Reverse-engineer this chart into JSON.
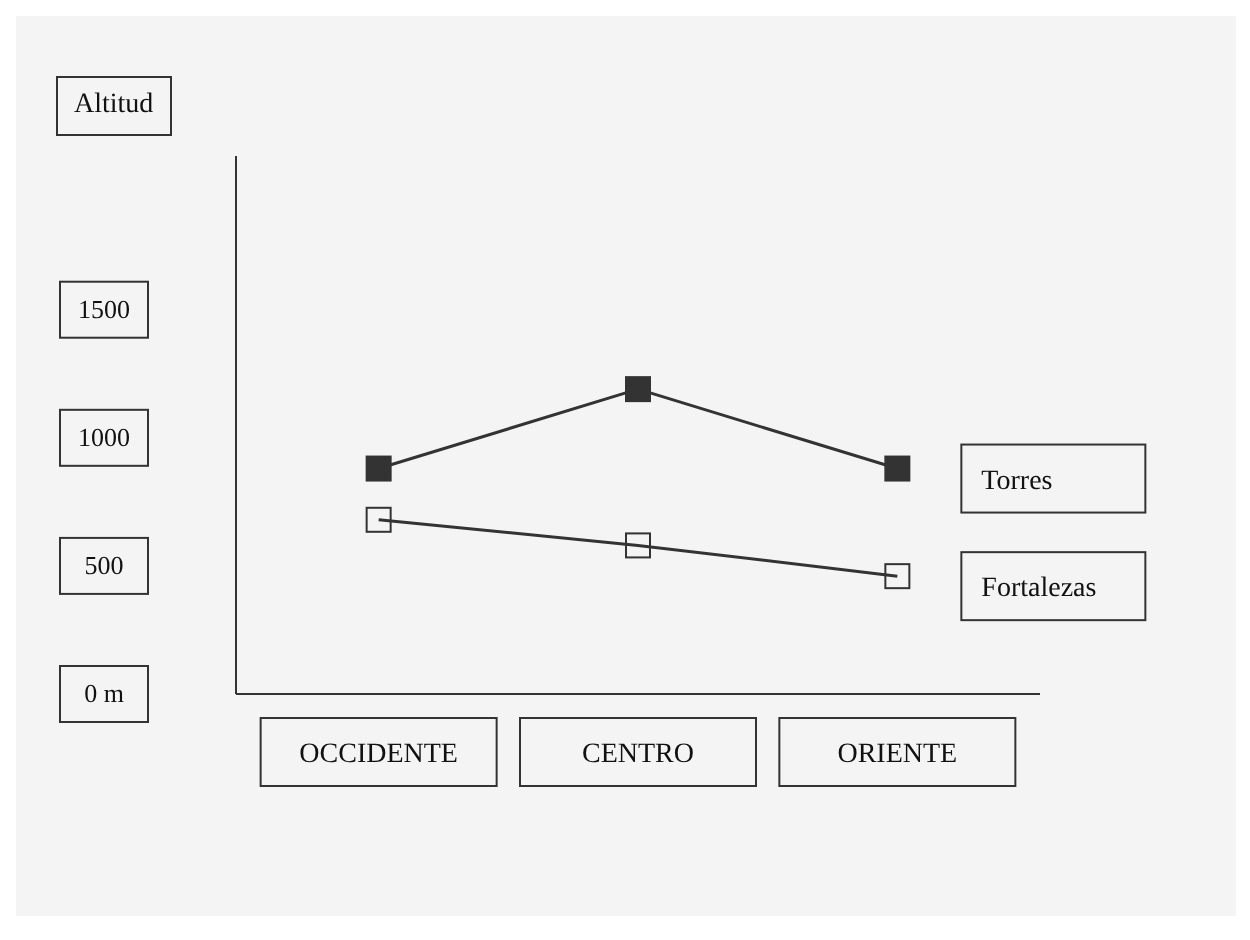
{
  "chart_data": {
    "type": "line",
    "ylabel": "Altitud",
    "categories": [
      "OCCIDENTE",
      "CENTRO",
      "ORIENTE"
    ],
    "series": [
      {
        "name": "Torres",
        "color": "#333333",
        "values": [
          880,
          1190,
          880
        ]
      },
      {
        "name": "Fortalezas",
        "color": "#333333",
        "values": [
          680,
          580,
          460
        ]
      }
    ],
    "ylim": [
      0,
      2100
    ],
    "yticks": [
      {
        "value": 0,
        "label": "0 m"
      },
      500,
      1000,
      1500
    ],
    "grid": false,
    "legend": false,
    "marker": "square",
    "line_style": "solid"
  }
}
